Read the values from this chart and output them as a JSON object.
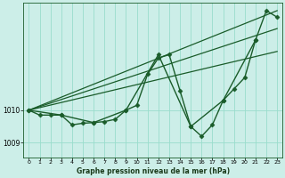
{
  "bg_color": "#cceee8",
  "plot_bg_color": "#cceee8",
  "line_color": "#1a5c2a",
  "grid_color": "#99ddcc",
  "xlabel": "Graphe pression niveau de la mer (hPa)",
  "ylim": [
    1008.55,
    1013.3
  ],
  "yticks": [
    1009,
    1010
  ],
  "xlim": [
    -0.5,
    23.5
  ],
  "xticks": [
    0,
    1,
    2,
    3,
    4,
    5,
    6,
    7,
    8,
    9,
    10,
    11,
    12,
    13,
    14,
    15,
    16,
    17,
    18,
    19,
    20,
    21,
    22,
    23
  ],
  "series": [
    {
      "x": [
        0,
        1,
        2,
        3,
        4,
        5,
        6,
        7,
        8,
        9,
        10,
        11,
        12,
        13,
        14,
        15,
        16,
        17,
        18,
        19,
        20,
        21,
        22,
        23
      ],
      "y": [
        1010.0,
        1009.85,
        1009.85,
        1009.85,
        1009.55,
        1009.6,
        1009.62,
        1009.65,
        1009.72,
        1010.0,
        1010.15,
        1011.1,
        1011.6,
        1011.7,
        1010.6,
        1009.5,
        1009.2,
        1009.55,
        1010.3,
        1010.65,
        1011.0,
        1012.15,
        1013.05,
        1012.85
      ],
      "marker": "D",
      "markersize": 2.5,
      "linewidth": 1.0
    },
    {
      "x": [
        0,
        3,
        6,
        9,
        12,
        15,
        18,
        21
      ],
      "y": [
        1010.0,
        1009.85,
        1009.62,
        1010.0,
        1011.7,
        1009.5,
        1010.3,
        1012.15
      ],
      "marker": "D",
      "markersize": 2.5,
      "linewidth": 1.0
    },
    {
      "x": [
        0,
        23
      ],
      "y": [
        1010.0,
        1013.05
      ],
      "marker": null,
      "markersize": 0,
      "linewidth": 0.9
    },
    {
      "x": [
        0,
        23
      ],
      "y": [
        1010.0,
        1012.5
      ],
      "marker": null,
      "markersize": 0,
      "linewidth": 0.9
    },
    {
      "x": [
        0,
        23
      ],
      "y": [
        1010.0,
        1011.8
      ],
      "marker": null,
      "markersize": 0,
      "linewidth": 0.9
    }
  ]
}
